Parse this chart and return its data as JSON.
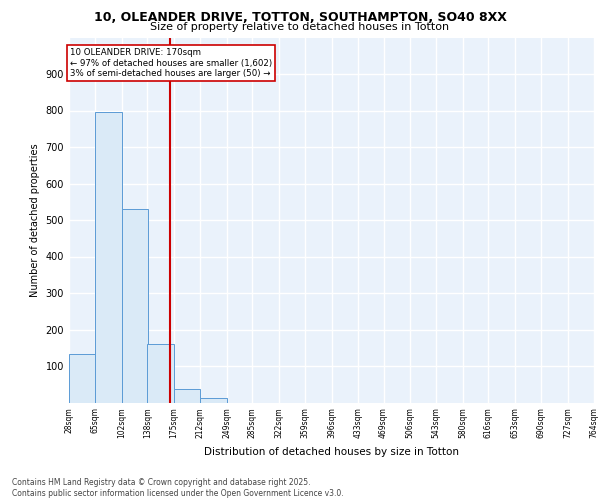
{
  "title_line1": "10, OLEANDER DRIVE, TOTTON, SOUTHAMPTON, SO40 8XX",
  "title_line2": "Size of property relative to detached houses in Totton",
  "xlabel": "Distribution of detached houses by size in Totton",
  "ylabel": "Number of detached properties",
  "footer_line1": "Contains HM Land Registry data © Crown copyright and database right 2025.",
  "footer_line2": "Contains public sector information licensed under the Open Government Licence v3.0.",
  "bin_edges": [
    28,
    65,
    102,
    138,
    175,
    212,
    249,
    285,
    322,
    359,
    396,
    433,
    469,
    506,
    543,
    580,
    616,
    653,
    690,
    727,
    764
  ],
  "bin_counts": [
    134,
    796,
    530,
    161,
    37,
    12,
    0,
    0,
    0,
    0,
    0,
    0,
    0,
    0,
    0,
    0,
    0,
    0,
    0,
    0
  ],
  "property_size": 170,
  "annotation_line1": "10 OLEANDER DRIVE: 170sqm",
  "annotation_line2": "← 97% of detached houses are smaller (1,602)",
  "annotation_line3": "3% of semi-detached houses are larger (50) →",
  "bar_fill_color": "#daeaf7",
  "bar_edge_color": "#5b9bd5",
  "vline_color": "#cc0000",
  "annotation_box_color": "#ffffff",
  "annotation_box_edge": "#cc0000",
  "background_color": "#eaf2fb",
  "grid_color": "#ffffff",
  "ylim": [
    0,
    1000
  ],
  "yticks": [
    0,
    100,
    200,
    300,
    400,
    500,
    600,
    700,
    800,
    900,
    1000
  ]
}
